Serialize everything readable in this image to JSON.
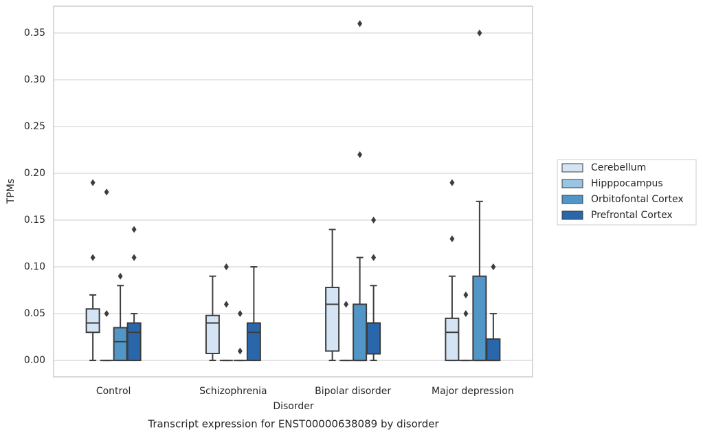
{
  "chart_data": {
    "type": "box",
    "title": "Transcript expression for ENST00000638089 by disorder",
    "xlabel": "Disorder",
    "ylabel": "TPMs",
    "categories": [
      "Control",
      "Schizophrenia",
      "Bipolar disorder",
      "Major depression"
    ],
    "ylim": [
      -0.0176,
      0.3787
    ],
    "yticks": [
      {
        "value": 0,
        "label": "0.00"
      },
      0.05,
      {
        "value": 0.1,
        "label": "0.10"
      },
      0.15,
      {
        "value": 0.2,
        "label": "0.20"
      },
      0.25,
      {
        "value": 0.3,
        "label": "0.30"
      },
      0.35
    ],
    "grid": true,
    "legend": "right",
    "series": [
      {
        "name": "Cerebellum",
        "color": "#d4e4f4",
        "stats": [
          {
            "min": 0,
            "q1": 0.03,
            "median": 0.04,
            "q3": 0.055,
            "max": 0.07,
            "outliers": [
              0.11,
              0.19
            ]
          },
          {
            "min": 0,
            "q1": 0.0074,
            "median": 0.04,
            "q3": 0.048,
            "max": 0.09,
            "outliers": []
          },
          {
            "min": 0,
            "q1": 0.01,
            "median": 0.06,
            "q3": 0.078,
            "max": 0.14,
            "outliers": []
          },
          {
            "min": 0,
            "q1": 0,
            "median": 0.03,
            "q3": 0.045,
            "max": 0.09,
            "outliers": [
              0.13,
              0.19
            ]
          }
        ]
      },
      {
        "name": "Hipppocampus",
        "color": "#9ac5e0",
        "stats": [
          {
            "min": 0,
            "q1": 0,
            "median": 0,
            "q3": 0,
            "max": 0,
            "outliers": [
              0.05,
              0.18
            ]
          },
          {
            "min": 0,
            "q1": 0,
            "median": 0,
            "q3": 0,
            "max": 0,
            "outliers": [
              0.06,
              0.1
            ]
          },
          {
            "min": 0,
            "q1": 0,
            "median": 0,
            "q3": 0,
            "max": 0,
            "outliers": [
              0.06
            ]
          },
          {
            "min": 0,
            "q1": 0,
            "median": 0,
            "q3": 0,
            "max": 0,
            "outliers": [
              0.05,
              0.07
            ]
          }
        ]
      },
      {
        "name": "Orbitofontal Cortex",
        "color": "#5196c6",
        "stats": [
          {
            "min": 0,
            "q1": 0,
            "median": 0.02,
            "q3": 0.035,
            "max": 0.08,
            "outliers": [
              0.09
            ]
          },
          {
            "min": 0,
            "q1": 0,
            "median": 0,
            "q3": 0,
            "max": 0,
            "outliers": [
              0.01,
              0.05
            ]
          },
          {
            "min": 0,
            "q1": 0,
            "median": 0,
            "q3": 0.06,
            "max": 0.11,
            "outliers": [
              0.22,
              0.36
            ]
          },
          {
            "min": 0,
            "q1": 0,
            "median": 0,
            "q3": 0.09,
            "max": 0.17,
            "outliers": [
              0.35
            ]
          }
        ]
      },
      {
        "name": "Prefrontal Cortex",
        "color": "#2a67aa",
        "stats": [
          {
            "min": 0,
            "q1": 0,
            "median": 0.03,
            "q3": 0.04,
            "max": 0.05,
            "outliers": [
              0.11,
              0.14
            ]
          },
          {
            "min": 0,
            "q1": 0,
            "median": 0.03,
            "q3": 0.04,
            "max": 0.1,
            "outliers": []
          },
          {
            "min": 0,
            "q1": 0.007,
            "median": 0.04,
            "q3": 0.04,
            "max": 0.08,
            "outliers": [
              0.11,
              0.15
            ]
          },
          {
            "min": 0,
            "q1": 0,
            "median": 0,
            "q3": 0.0228,
            "max": 0.05,
            "outliers": [
              0.1
            ]
          }
        ]
      }
    ]
  }
}
